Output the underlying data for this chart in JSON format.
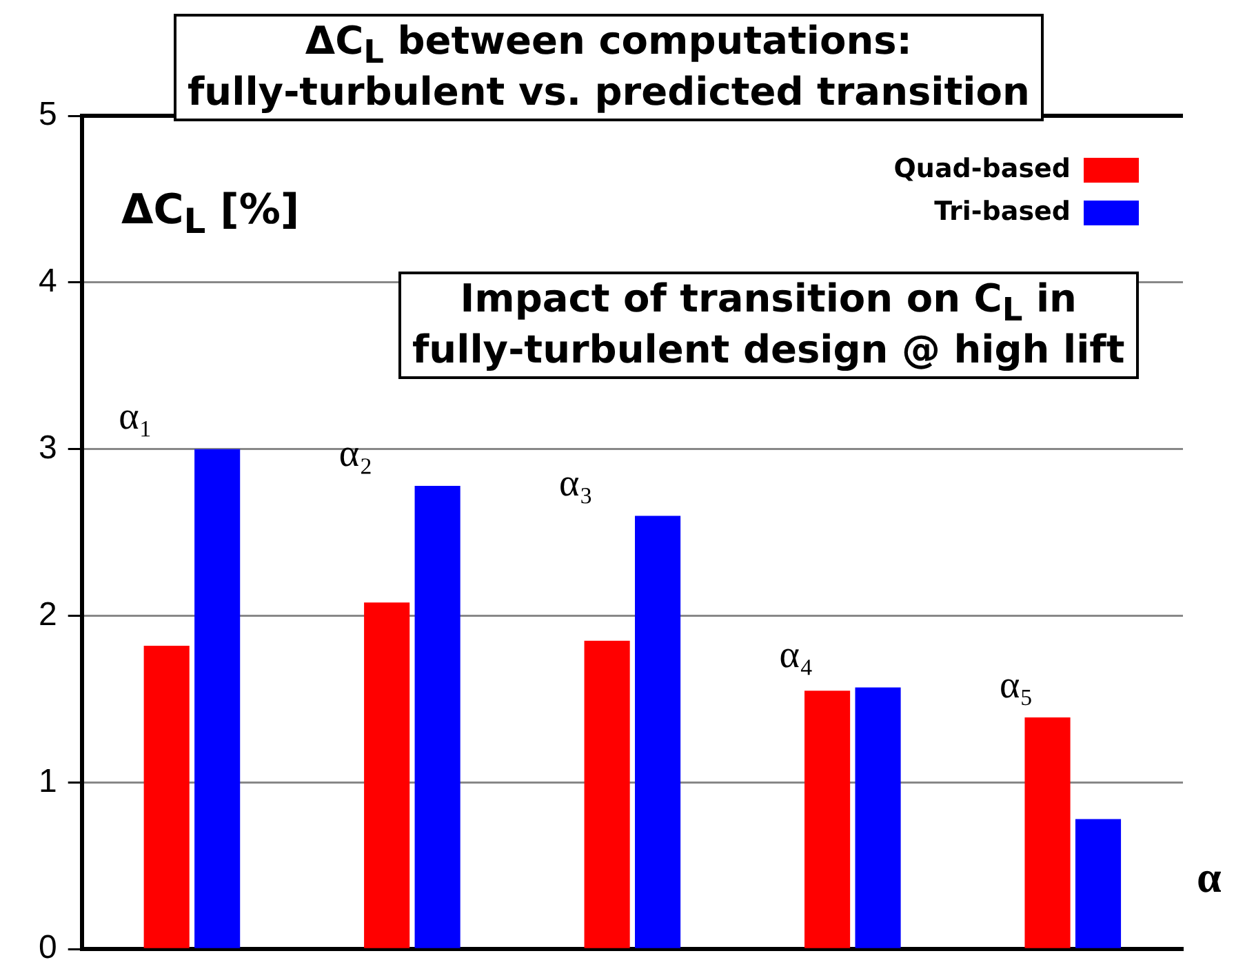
{
  "chart_data": {
    "type": "bar",
    "title": "ΔC$_{L}$ between computations:\nfully-turbulent vs. predicted transition",
    "ylabel": "ΔC$_{L}$ [%]",
    "xlabel": "α",
    "annotations": [
      "Impact of transition on C$_{L}$ in\nfully-turbulent design @ high lift"
    ],
    "categories": [
      "α₁",
      "α₂",
      "α₃",
      "α₄",
      "α₅"
    ],
    "series": [
      {
        "name": "Quad-based",
        "color": "#ff0000",
        "values": [
          1.82,
          2.08,
          1.85,
          1.55,
          1.39
        ]
      },
      {
        "name": "Tri-based",
        "color": "#0000ff",
        "values": [
          3.0,
          2.78,
          2.6,
          1.57,
          0.78
        ]
      }
    ],
    "ylim": [
      0,
      5
    ],
    "yticks": [
      0,
      1,
      2,
      3,
      4,
      5
    ],
    "grid": "y",
    "legend": "top right"
  }
}
